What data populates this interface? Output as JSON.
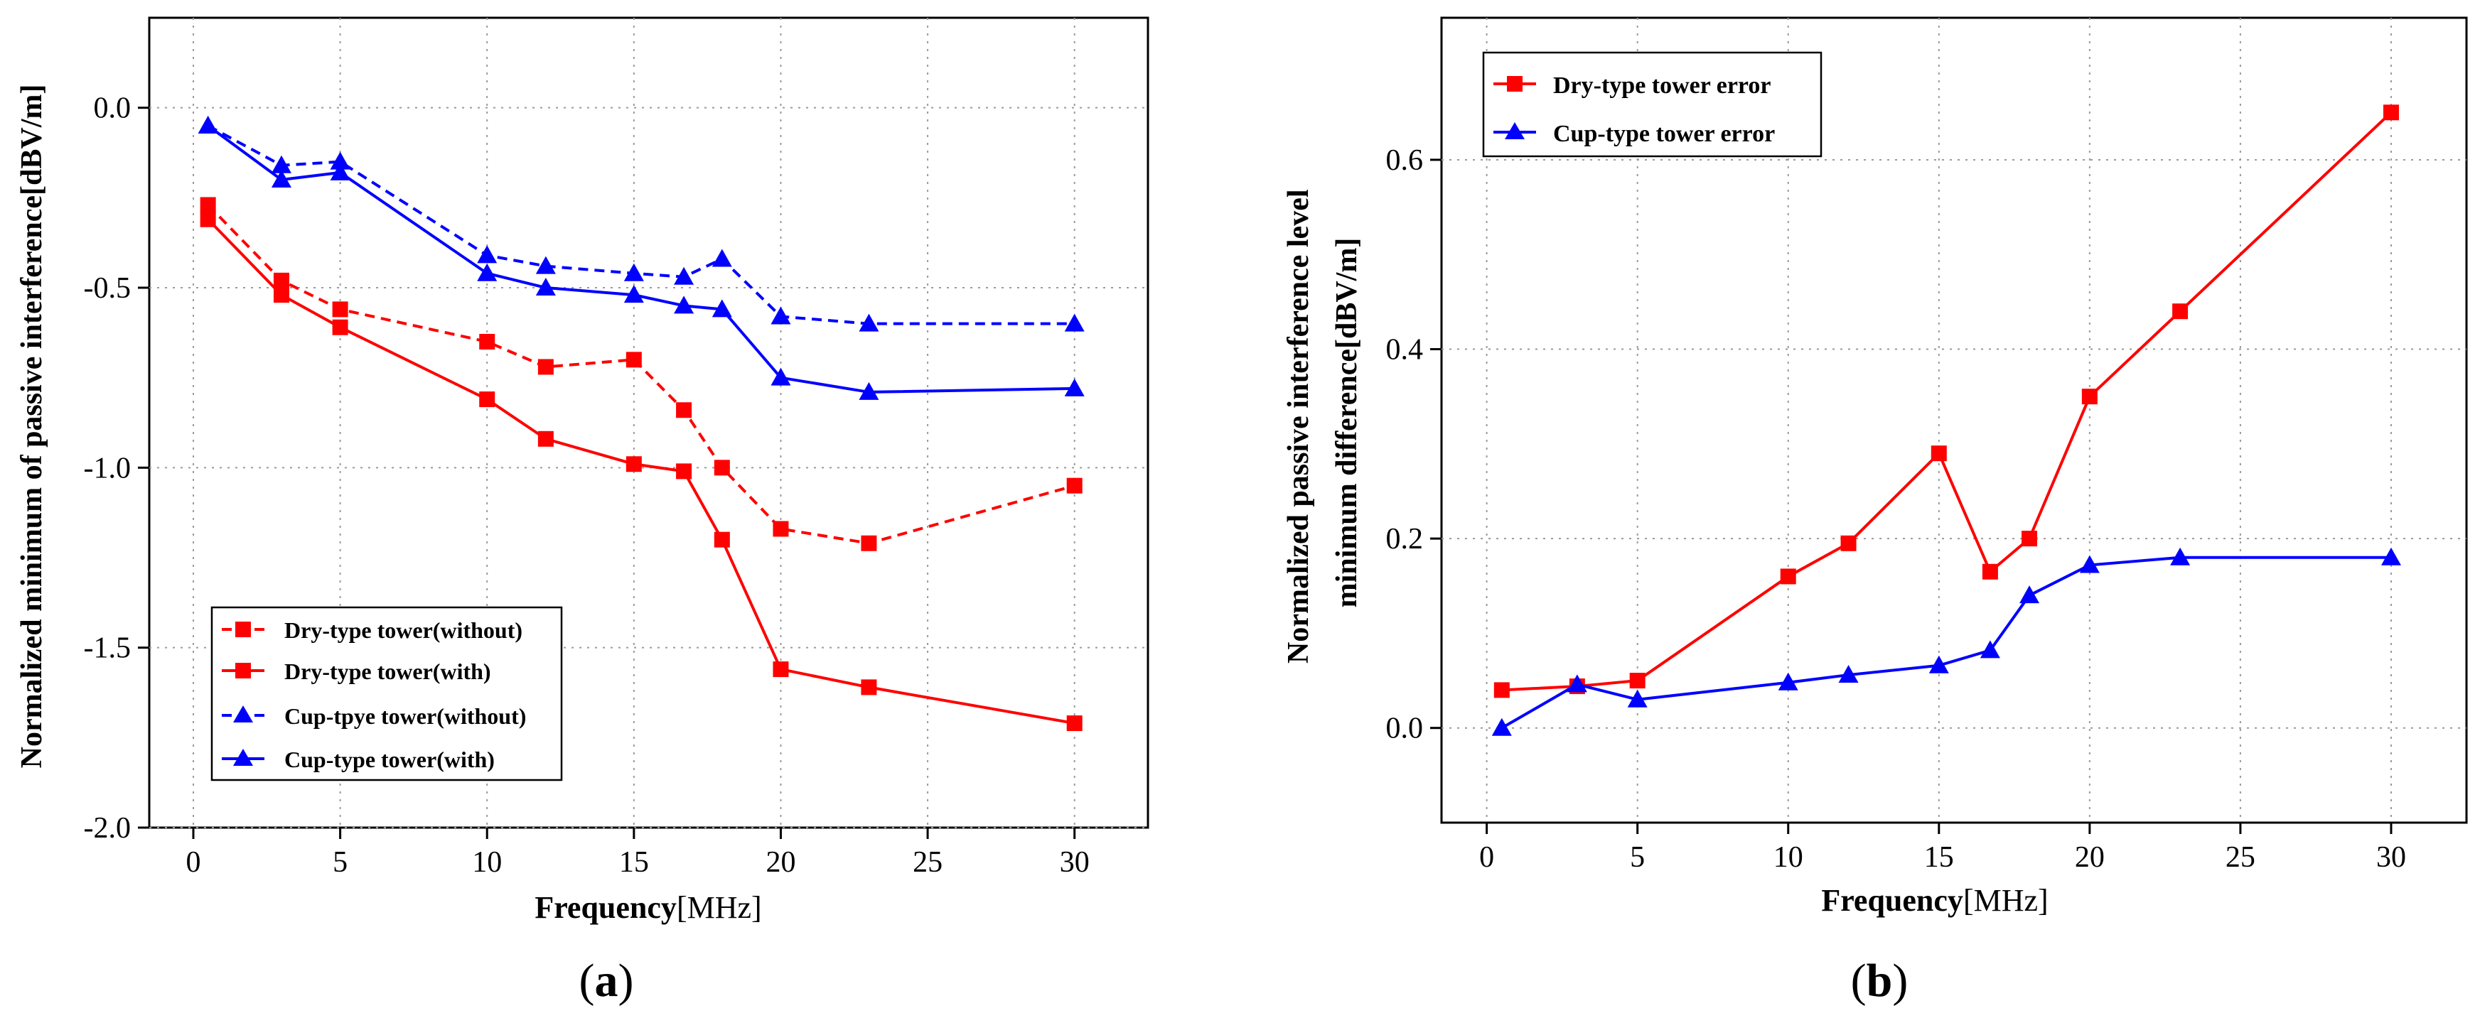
{
  "chart_data": [
    {
      "type": "line",
      "panel_label_open": "(",
      "panel_label_letter": "a",
      "panel_label_close": ")",
      "xlabel_bold": "Frequency",
      "xlabel_unit": "[MHz]",
      "ylabel": "Normalized minimum of passive interference[dBV/m]",
      "xlim": [
        -1.5,
        32.5
      ],
      "ylim": [
        -2.0,
        0.25
      ],
      "xticks": [
        0,
        5,
        10,
        15,
        20,
        25,
        30
      ],
      "xtick_labels": [
        "0",
        "5",
        "10",
        "15",
        "20",
        "25",
        "30"
      ],
      "yticks": [
        0.0,
        -0.5,
        -1.0,
        -1.5,
        -2.0
      ],
      "ytick_labels": [
        "0.0",
        "-0.5",
        "-1.0",
        "-1.5",
        "-2.0"
      ],
      "legend_position": "bottom-left",
      "grid": true,
      "series": [
        {
          "name": "Dry-type tower(without)",
          "color": "#ff0000",
          "dash": "dashed",
          "marker": "square",
          "x": [
            0.5,
            3,
            5,
            10,
            12,
            15,
            16.7,
            18,
            20,
            23,
            30
          ],
          "values": [
            -0.27,
            -0.48,
            -0.56,
            -0.65,
            -0.72,
            -0.7,
            -0.84,
            -1.0,
            -1.17,
            -1.21,
            -1.05
          ]
        },
        {
          "name": "Dry-type tower(with)",
          "color": "#ff0000",
          "dash": "solid",
          "marker": "square",
          "x": [
            0.5,
            3,
            5,
            10,
            12,
            15,
            16.7,
            18,
            20,
            23,
            30
          ],
          "values": [
            -0.31,
            -0.52,
            -0.61,
            -0.81,
            -0.92,
            -0.99,
            -1.01,
            -1.2,
            -1.56,
            -1.61,
            -1.71
          ]
        },
        {
          "name": "Cup-tpye tower(without)",
          "color": "#0000ff",
          "dash": "dashed",
          "marker": "triangle",
          "x": [
            0.5,
            3,
            5,
            10,
            12,
            15,
            16.7,
            18,
            20,
            23,
            30
          ],
          "values": [
            -0.05,
            -0.16,
            -0.15,
            -0.41,
            -0.44,
            -0.46,
            -0.47,
            -0.42,
            -0.58,
            -0.6,
            -0.6
          ]
        },
        {
          "name": "Cup-type tower(with)",
          "color": "#0000ff",
          "dash": "solid",
          "marker": "triangle",
          "x": [
            0.5,
            3,
            5,
            10,
            12,
            15,
            16.7,
            18,
            20,
            23,
            30
          ],
          "values": [
            -0.05,
            -0.2,
            -0.18,
            -0.46,
            -0.5,
            -0.52,
            -0.55,
            -0.56,
            -0.75,
            -0.79,
            -0.78
          ]
        }
      ]
    },
    {
      "type": "line",
      "panel_label_open": "(",
      "panel_label_letter": "b",
      "panel_label_close": ")",
      "xlabel_bold": "Frequency",
      "xlabel_unit": "[MHz]",
      "ylabel_line1": "Normalized passive interference level",
      "ylabel_line2": "minimum difference[dBV/m]",
      "xlim": [
        -1.5,
        32.5
      ],
      "ylim": [
        -0.1,
        0.75
      ],
      "xticks": [
        0,
        5,
        10,
        15,
        20,
        25,
        30
      ],
      "xtick_labels": [
        "0",
        "5",
        "10",
        "15",
        "20",
        "25",
        "30"
      ],
      "yticks": [
        0.0,
        0.2,
        0.4,
        0.6
      ],
      "ytick_labels": [
        "0.0",
        "0.2",
        "0.4",
        "0.6"
      ],
      "legend_position": "top-left",
      "grid": true,
      "series": [
        {
          "name": "Dry-type tower error",
          "color": "#ff0000",
          "dash": "solid",
          "marker": "square",
          "x": [
            0.5,
            3,
            5,
            10,
            12,
            15,
            16.7,
            18,
            20,
            23,
            30
          ],
          "values": [
            0.04,
            0.044,
            0.05,
            0.16,
            0.195,
            0.29,
            0.165,
            0.2,
            0.35,
            0.44,
            0.65
          ]
        },
        {
          "name": "Cup-type tower error",
          "color": "#0000ff",
          "dash": "solid",
          "marker": "triangle",
          "x": [
            0.5,
            3,
            5,
            10,
            12,
            15,
            16.7,
            18,
            20,
            23,
            30
          ],
          "values": [
            0.0,
            0.046,
            0.03,
            0.048,
            0.056,
            0.066,
            0.082,
            0.14,
            0.172,
            0.18,
            0.18
          ]
        }
      ]
    }
  ]
}
